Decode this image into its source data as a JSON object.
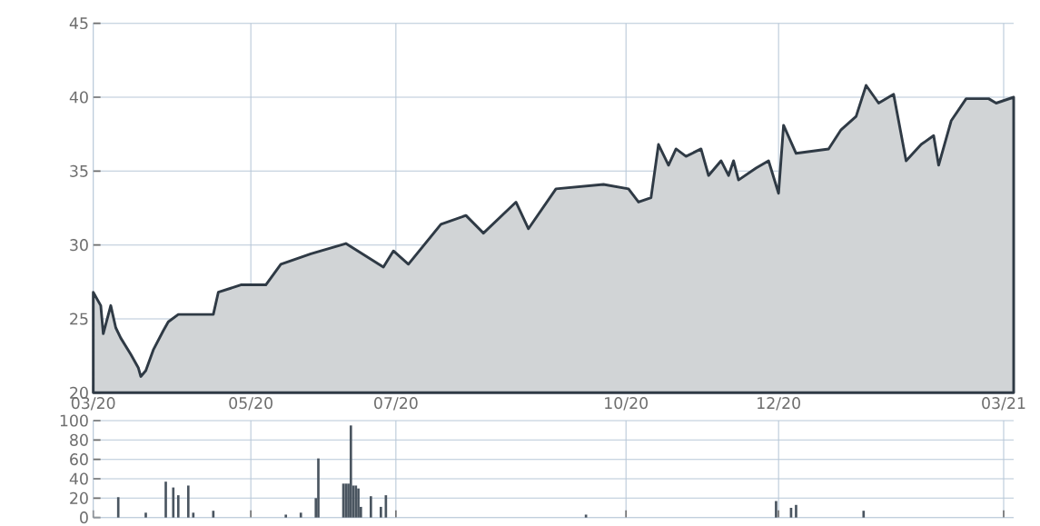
{
  "chart_data": [
    {
      "type": "area",
      "color": "#2f3a45",
      "grid": true,
      "xlim": [
        "2020-03-02",
        "2021-03-05"
      ],
      "ylim": [
        20,
        45
      ],
      "xticks": [
        {
          "value": "2020-03-02",
          "label": "03/20"
        },
        {
          "value": "2020-05-04",
          "label": "05/20"
        },
        {
          "value": "2020-07-01",
          "label": "07/20"
        },
        {
          "value": "2020-10-01",
          "label": "10/20"
        },
        {
          "value": "2020-12-01",
          "label": "12/20"
        },
        {
          "value": "2021-03-01",
          "label": "03/21"
        }
      ],
      "yticks": [
        20,
        25,
        30,
        35,
        40,
        45
      ],
      "x": [
        "2020-03-02",
        "2020-03-05",
        "2020-03-06",
        "2020-03-09",
        "2020-03-11",
        "2020-03-13",
        "2020-03-17",
        "2020-03-20",
        "2020-03-21",
        "2020-03-23",
        "2020-03-26",
        "2020-03-30",
        "2020-04-01",
        "2020-04-05",
        "2020-04-19",
        "2020-04-21",
        "2020-04-30",
        "2020-05-10",
        "2020-05-16",
        "2020-05-28",
        "2020-06-11",
        "2020-06-26",
        "2020-06-30",
        "2020-07-06",
        "2020-07-19",
        "2020-07-29",
        "2020-08-05",
        "2020-08-18",
        "2020-08-23",
        "2020-09-03",
        "2020-09-22",
        "2020-10-02",
        "2020-10-06",
        "2020-10-11",
        "2020-10-14",
        "2020-10-18",
        "2020-10-21",
        "2020-10-25",
        "2020-10-31",
        "2020-11-03",
        "2020-11-08",
        "2020-11-11",
        "2020-11-13",
        "2020-11-15",
        "2020-11-22",
        "2020-11-27",
        "2020-12-01",
        "2020-12-03",
        "2020-12-08",
        "2020-12-21",
        "2020-12-26",
        "2021-01-01",
        "2021-01-05",
        "2021-01-10",
        "2021-01-16",
        "2021-01-21",
        "2021-01-27",
        "2021-02-01",
        "2021-02-03",
        "2021-02-08",
        "2021-02-14",
        "2021-02-23",
        "2021-02-26",
        "2021-03-05"
      ],
      "values": [
        26.8,
        25.9,
        24.0,
        25.9,
        24.4,
        23.7,
        22.6,
        21.7,
        21.1,
        21.5,
        22.9,
        24.2,
        24.8,
        25.3,
        25.3,
        26.8,
        27.3,
        27.3,
        28.7,
        29.4,
        30.1,
        28.5,
        29.6,
        28.7,
        31.4,
        32.0,
        30.8,
        32.9,
        31.1,
        33.8,
        34.1,
        33.8,
        32.9,
        33.2,
        36.8,
        35.4,
        36.5,
        36.0,
        36.5,
        34.7,
        35.7,
        34.7,
        35.7,
        34.4,
        35.2,
        35.7,
        33.5,
        38.1,
        36.2,
        36.5,
        37.8,
        38.7,
        40.8,
        39.6,
        40.2,
        35.7,
        36.8,
        37.4,
        35.4,
        38.4,
        39.9,
        39.9,
        39.6,
        40.0
      ]
    },
    {
      "type": "bar",
      "color": "#4a5560",
      "grid": true,
      "tick_labels": "y",
      "xlim": [
        "2020-03-02",
        "2021-03-05"
      ],
      "ylim": [
        0,
        100
      ],
      "xticks": [
        {
          "value": "2020-03-02",
          "label": null
        },
        {
          "value": "2020-05-04",
          "label": null
        },
        {
          "value": "2020-07-01",
          "label": null
        },
        {
          "value": "2020-10-01",
          "label": null
        },
        {
          "value": "2020-12-01",
          "label": null
        },
        {
          "value": "2021-03-01",
          "label": null
        }
      ],
      "yticks": [
        0,
        20,
        40,
        60,
        80,
        100
      ],
      "x": [
        "2020-03-12",
        "2020-03-23",
        "2020-03-31",
        "2020-04-03",
        "2020-04-05",
        "2020-04-09",
        "2020-04-11",
        "2020-04-19",
        "2020-05-18",
        "2020-05-24",
        "2020-05-30",
        "2020-05-31",
        "2020-06-10",
        "2020-06-11",
        "2020-06-12",
        "2020-06-13",
        "2020-06-14",
        "2020-06-15",
        "2020-06-16",
        "2020-06-17",
        "2020-06-21",
        "2020-06-25",
        "2020-06-27",
        "2020-09-15",
        "2020-11-30",
        "2020-12-06",
        "2020-12-08",
        "2021-01-04"
      ],
      "values": [
        21,
        5,
        37,
        31,
        23,
        33,
        5,
        7,
        3,
        5,
        20,
        61,
        35,
        35,
        35,
        95,
        33,
        33,
        30,
        11,
        22,
        11,
        23,
        3,
        17,
        10,
        13,
        7
      ]
    }
  ]
}
